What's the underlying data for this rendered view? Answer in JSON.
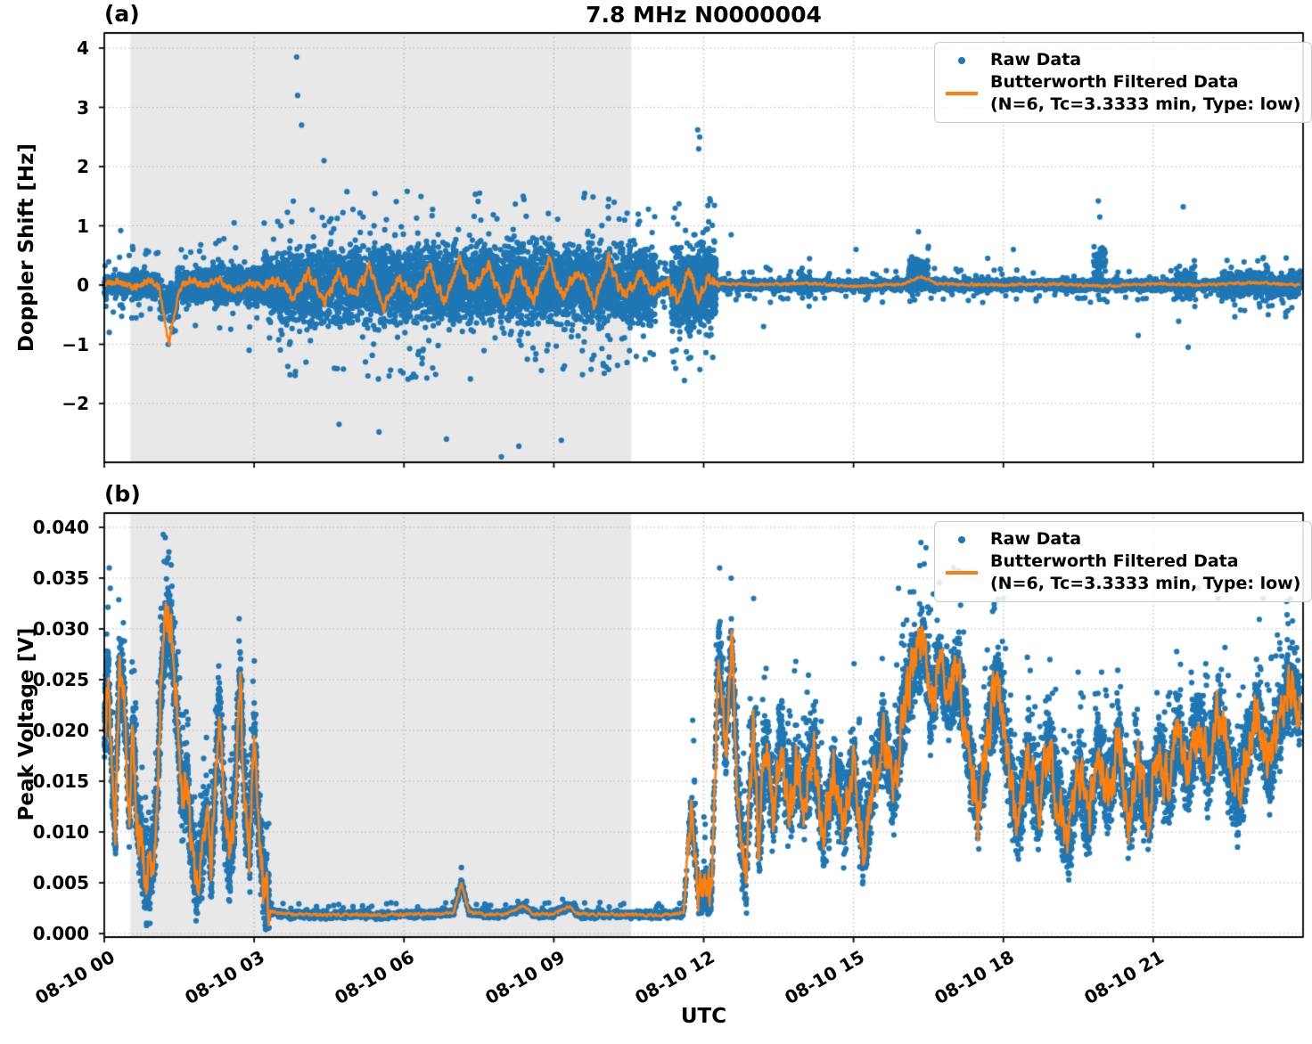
{
  "title": "7.8 MHz N0000004",
  "colors": {
    "raw": "#1f77b4",
    "filtered": "#ff7f0e",
    "shaded_region": "#e8e8e8",
    "grid": "#b5b5b5",
    "spine": "#000000"
  },
  "legend": {
    "raw_label": "Raw Data",
    "filtered_label": "Butterworth Filtered Data",
    "filtered_params": "(N=6, Tc=3.3333 min, Type: low)"
  },
  "xaxis": {
    "label": "UTC",
    "tick_labels": [
      "08-10 00",
      "08-10 03",
      "08-10 06",
      "08-10 09",
      "08-10 12",
      "08-10 15",
      "08-10 18",
      "08-10 21"
    ],
    "tick_hours": [
      0,
      3,
      6,
      9,
      12,
      15,
      18,
      21
    ],
    "range_hours": [
      0,
      24
    ]
  },
  "panels": [
    {
      "label": "(a)",
      "ylabel": "Doppler Shift [Hz]",
      "ylim": [
        -2.99,
        4.2
      ],
      "ytick_values": [
        4,
        3,
        2,
        1,
        0,
        -1,
        -2
      ],
      "ytick_labels": [
        "4",
        "3",
        "2",
        "1",
        "0",
        "−1",
        "−2"
      ]
    },
    {
      "label": "(b)",
      "ylabel": "Peak Voltage [V]",
      "ylim": [
        -0.00035,
        0.0414
      ],
      "ytick_values": [
        0.04,
        0.035,
        0.03,
        0.025,
        0.02,
        0.015,
        0.01,
        0.005,
        0.0
      ],
      "ytick_labels": [
        "0.040",
        "0.035",
        "0.030",
        "0.025",
        "0.020",
        "0.015",
        "0.010",
        "0.005",
        "0.000"
      ]
    }
  ],
  "shaded_region_hours": [
    0.52,
    10.55
  ],
  "chart_data": [
    {
      "type": "scatter+line",
      "panel": "a",
      "title": "Doppler shift raw scatter with Butterworth low-pass filtered line",
      "xlabel": "UTC hours on 08-10",
      "ylabel": "Doppler Shift [Hz]",
      "xlim_hours": [
        0,
        24
      ],
      "ylim": [
        -2.99,
        4.2
      ],
      "raw_segments": [
        [
          0.0,
          0.55,
          0.0,
          0.22,
          300,
          0.55
        ],
        [
          0.55,
          1.1,
          0.0,
          0.3,
          330,
          0.65
        ],
        [
          1.1,
          1.45,
          -0.3,
          0.4,
          140,
          0.6
        ],
        [
          1.45,
          2.2,
          0.0,
          0.36,
          420,
          0.7
        ],
        [
          2.2,
          3.2,
          0.0,
          0.42,
          520,
          0.8
        ],
        [
          3.2,
          3.6,
          0.0,
          0.7,
          320,
          1.1
        ],
        [
          3.6,
          10.55,
          0.0,
          0.92,
          4400,
          1.6
        ],
        [
          10.55,
          11.05,
          0.0,
          0.8,
          520,
          1.3
        ],
        [
          11.05,
          11.35,
          0.0,
          0.22,
          90,
          0.4
        ],
        [
          11.35,
          11.8,
          -0.1,
          0.85,
          480,
          1.6
        ],
        [
          11.8,
          12.25,
          0.0,
          0.95,
          480,
          1.5
        ],
        [
          12.25,
          23.95,
          0.0,
          0.13,
          3200,
          0.3
        ],
        [
          13.9,
          14.15,
          0.0,
          0.3,
          60,
          0.55
        ],
        [
          16.1,
          16.5,
          0.25,
          0.3,
          130,
          0.6
        ],
        [
          17.4,
          17.7,
          0.0,
          0.25,
          60,
          0.5
        ],
        [
          19.8,
          20.05,
          0.4,
          0.4,
          50,
          0.9
        ],
        [
          21.45,
          21.85,
          0.0,
          0.45,
          110,
          0.9
        ],
        [
          22.3,
          23.95,
          0.0,
          0.28,
          600,
          0.55
        ]
      ],
      "outliers": [
        [
          3.85,
          3.85
        ],
        [
          3.87,
          3.2
        ],
        [
          3.95,
          2.7
        ],
        [
          4.4,
          2.1
        ],
        [
          11.88,
          2.62
        ],
        [
          11.92,
          2.5
        ],
        [
          11.9,
          2.3
        ],
        [
          7.95,
          -2.9
        ],
        [
          8.3,
          -2.72
        ],
        [
          6.85,
          -2.6
        ],
        [
          9.15,
          -2.62
        ],
        [
          5.5,
          -2.48
        ],
        [
          4.7,
          -2.35
        ],
        [
          19.9,
          1.42
        ],
        [
          19.93,
          1.15
        ],
        [
          21.6,
          1.32
        ],
        [
          16.3,
          0.9
        ],
        [
          12.55,
          0.85
        ],
        [
          13.2,
          -0.7
        ],
        [
          15.05,
          0.6
        ],
        [
          18.2,
          0.6
        ],
        [
          20.7,
          -0.85
        ],
        [
          21.7,
          -1.05
        ],
        [
          1.28,
          -1.0
        ],
        [
          0.33,
          0.92
        ],
        [
          0.1,
          -0.8
        ],
        [
          2.6,
          1.05
        ],
        [
          2.9,
          -1.1
        ]
      ],
      "filtered_points": [
        [
          0,
          0.02
        ],
        [
          0.3,
          0.06
        ],
        [
          0.6,
          -0.05
        ],
        [
          0.9,
          0.08
        ],
        [
          1.1,
          -0.05
        ],
        [
          1.2,
          -0.55
        ],
        [
          1.3,
          -0.97
        ],
        [
          1.4,
          -0.45
        ],
        [
          1.5,
          -0.1
        ],
        [
          1.7,
          0.1
        ],
        [
          2,
          0
        ],
        [
          2.3,
          0.1
        ],
        [
          2.6,
          -0.12
        ],
        [
          2.9,
          0.06
        ],
        [
          3.2,
          -0.06
        ],
        [
          3.5,
          0.12
        ],
        [
          3.8,
          -0.22
        ],
        [
          4.1,
          0.18
        ],
        [
          4.4,
          -0.3
        ],
        [
          4.7,
          0.22
        ],
        [
          5,
          -0.18
        ],
        [
          5.3,
          0.28
        ],
        [
          5.6,
          -0.38
        ],
        [
          5.9,
          0.12
        ],
        [
          6.2,
          -0.22
        ],
        [
          6.5,
          0.32
        ],
        [
          6.8,
          -0.28
        ],
        [
          7.1,
          0.38
        ],
        [
          7.4,
          -0.12
        ],
        [
          7.7,
          0.32
        ],
        [
          8,
          -0.32
        ],
        [
          8.3,
          0.22
        ],
        [
          8.6,
          -0.22
        ],
        [
          8.9,
          0.38
        ],
        [
          9.2,
          -0.18
        ],
        [
          9.5,
          0.28
        ],
        [
          9.8,
          -0.32
        ],
        [
          10.1,
          0.42
        ],
        [
          10.4,
          -0.22
        ],
        [
          10.7,
          0.18
        ],
        [
          11,
          -0.12
        ],
        [
          11.3,
          0.06
        ],
        [
          11.5,
          -0.32
        ],
        [
          11.7,
          0.28
        ],
        [
          11.9,
          -0.22
        ],
        [
          12.1,
          0.12
        ],
        [
          12.3,
          0.03
        ],
        [
          13,
          0
        ],
        [
          14,
          0.03
        ],
        [
          15,
          -0.02
        ],
        [
          16,
          0.02
        ],
        [
          16.35,
          0.14
        ],
        [
          16.7,
          0.02
        ],
        [
          18,
          0
        ],
        [
          19,
          0.02
        ],
        [
          20,
          -0.02
        ],
        [
          21,
          0.02
        ],
        [
          22,
          0
        ],
        [
          23,
          0.04
        ],
        [
          23.95,
          0
        ]
      ],
      "filtered_noise_regions": [
        [
          0,
          3.2,
          0.05
        ],
        [
          3.2,
          12.3,
          0.09
        ],
        [
          12.3,
          24,
          0.018
        ]
      ]
    },
    {
      "type": "scatter+line",
      "panel": "b",
      "title": "Peak voltage raw scatter with Butterworth low-pass filtered line",
      "xlabel": "UTC hours on 08-10",
      "ylabel": "Peak Voltage [V]",
      "xlim_hours": [
        0,
        24
      ],
      "ylim": [
        -0.00035,
        0.0414
      ],
      "raw_segments": [
        [
          0.0,
          0.52,
          0.005,
          420,
          0.009,
          0.004
        ],
        [
          0.52,
          3.3,
          0.0055,
          2300,
          0.009,
          0.0045
        ],
        [
          3.3,
          11.7,
          0.0005,
          1700,
          0.0012,
          0.0004
        ],
        [
          11.7,
          12.25,
          0.003,
          260,
          0.007,
          0.002
        ],
        [
          12.25,
          23.95,
          0.0055,
          7200,
          0.01,
          0.005
        ]
      ],
      "outliers": [
        [
          0.1,
          0.036
        ],
        [
          0.12,
          0.034
        ],
        [
          1.18,
          0.0393
        ],
        [
          1.22,
          0.039
        ],
        [
          1.28,
          0.037
        ],
        [
          2.7,
          0.031
        ],
        [
          7.15,
          0.0065
        ],
        [
          11.78,
          0.021
        ],
        [
          11.8,
          0.019
        ],
        [
          12.32,
          0.036
        ],
        [
          12.55,
          0.035
        ],
        [
          16.35,
          0.0385
        ],
        [
          16.45,
          0.038
        ],
        [
          17.0,
          0.036
        ],
        [
          21.9,
          0.034
        ],
        [
          23.2,
          0.033
        ],
        [
          13.0,
          0.033
        ],
        [
          15.9,
          0.034
        ],
        [
          18.0,
          0.033
        ],
        [
          22.3,
          0.033
        ]
      ],
      "filtered_points": [
        [
          0,
          0.02
        ],
        [
          0.08,
          0.026
        ],
        [
          0.15,
          0.016
        ],
        [
          0.22,
          0.01
        ],
        [
          0.3,
          0.026
        ],
        [
          0.4,
          0.023
        ],
        [
          0.5,
          0.012
        ],
        [
          0.58,
          0.02
        ],
        [
          0.65,
          0.012
        ],
        [
          0.75,
          0.008
        ],
        [
          0.85,
          0.005
        ],
        [
          0.95,
          0.007
        ],
        [
          1.05,
          0.012
        ],
        [
          1.15,
          0.026
        ],
        [
          1.25,
          0.031
        ],
        [
          1.35,
          0.029
        ],
        [
          1.45,
          0.022
        ],
        [
          1.55,
          0.013
        ],
        [
          1.65,
          0.015
        ],
        [
          1.75,
          0.009
        ],
        [
          1.85,
          0.005
        ],
        [
          1.95,
          0.008
        ],
        [
          2.05,
          0.012
        ],
        [
          2.15,
          0.007
        ],
        [
          2.3,
          0.023
        ],
        [
          2.4,
          0.012
        ],
        [
          2.5,
          0.007
        ],
        [
          2.62,
          0.013
        ],
        [
          2.72,
          0.026
        ],
        [
          2.8,
          0.014
        ],
        [
          2.9,
          0.007
        ],
        [
          3.0,
          0.019
        ],
        [
          3.1,
          0.01
        ],
        [
          3.2,
          0.004
        ],
        [
          3.35,
          0.0022
        ],
        [
          3.6,
          0.0019
        ],
        [
          4,
          0.0019
        ],
        [
          4.5,
          0.0018
        ],
        [
          5,
          0.0019
        ],
        [
          5.5,
          0.0018
        ],
        [
          6,
          0.0019
        ],
        [
          6.5,
          0.0019
        ],
        [
          7,
          0.0021
        ],
        [
          7.15,
          0.005
        ],
        [
          7.3,
          0.0021
        ],
        [
          7.6,
          0.0019
        ],
        [
          8,
          0.0019
        ],
        [
          8.4,
          0.0027
        ],
        [
          8.6,
          0.0019
        ],
        [
          9,
          0.0019
        ],
        [
          9.3,
          0.0027
        ],
        [
          9.5,
          0.0019
        ],
        [
          10,
          0.0019
        ],
        [
          10.5,
          0.0019
        ],
        [
          11,
          0.0018
        ],
        [
          11.4,
          0.0019
        ],
        [
          11.6,
          0.002
        ],
        [
          11.75,
          0.0128
        ],
        [
          11.9,
          0.0035
        ],
        [
          12.05,
          0.005
        ],
        [
          12.15,
          0.0028
        ],
        [
          12.3,
          0.029
        ],
        [
          12.45,
          0.018
        ],
        [
          12.55,
          0.029
        ],
        [
          12.7,
          0.012
        ],
        [
          12.85,
          0.006
        ],
        [
          13,
          0.021
        ],
        [
          13.1,
          0.009
        ],
        [
          13.25,
          0.019
        ],
        [
          13.4,
          0.011
        ],
        [
          13.55,
          0.02
        ],
        [
          13.7,
          0.012
        ],
        [
          13.85,
          0.017
        ],
        [
          14,
          0.013
        ],
        [
          14.2,
          0.019
        ],
        [
          14.4,
          0.009
        ],
        [
          14.6,
          0.016
        ],
        [
          14.8,
          0.011
        ],
        [
          15,
          0.017
        ],
        [
          15.2,
          0.008
        ],
        [
          15.4,
          0.015
        ],
        [
          15.6,
          0.02
        ],
        [
          15.8,
          0.014
        ],
        [
          16,
          0.022
        ],
        [
          16.2,
          0.026
        ],
        [
          16.4,
          0.029
        ],
        [
          16.55,
          0.022
        ],
        [
          16.7,
          0.027
        ],
        [
          16.9,
          0.023
        ],
        [
          17.1,
          0.026
        ],
        [
          17.3,
          0.018
        ],
        [
          17.5,
          0.012
        ],
        [
          17.7,
          0.02
        ],
        [
          17.9,
          0.025
        ],
        [
          18.1,
          0.016
        ],
        [
          18.3,
          0.011
        ],
        [
          18.5,
          0.018
        ],
        [
          18.7,
          0.012
        ],
        [
          18.9,
          0.019
        ],
        [
          19.1,
          0.013
        ],
        [
          19.3,
          0.009
        ],
        [
          19.5,
          0.016
        ],
        [
          19.7,
          0.011
        ],
        [
          19.9,
          0.018
        ],
        [
          20.1,
          0.013
        ],
        [
          20.3,
          0.019
        ],
        [
          20.5,
          0.011
        ],
        [
          20.7,
          0.016
        ],
        [
          20.9,
          0.012
        ],
        [
          21.1,
          0.018
        ],
        [
          21.3,
          0.014
        ],
        [
          21.5,
          0.02
        ],
        [
          21.7,
          0.015
        ],
        [
          21.9,
          0.021
        ],
        [
          22.1,
          0.016
        ],
        [
          22.3,
          0.022
        ],
        [
          22.5,
          0.017
        ],
        [
          22.7,
          0.013
        ],
        [
          22.9,
          0.019
        ],
        [
          23.1,
          0.022
        ],
        [
          23.3,
          0.016
        ],
        [
          23.5,
          0.02
        ],
        [
          23.7,
          0.024
        ],
        [
          23.95,
          0.022
        ]
      ],
      "filtered_noise_regions": [
        [
          0,
          3.3,
          0.002
        ],
        [
          3.3,
          11.65,
          0.00012
        ],
        [
          11.65,
          24,
          0.0022
        ]
      ]
    }
  ]
}
